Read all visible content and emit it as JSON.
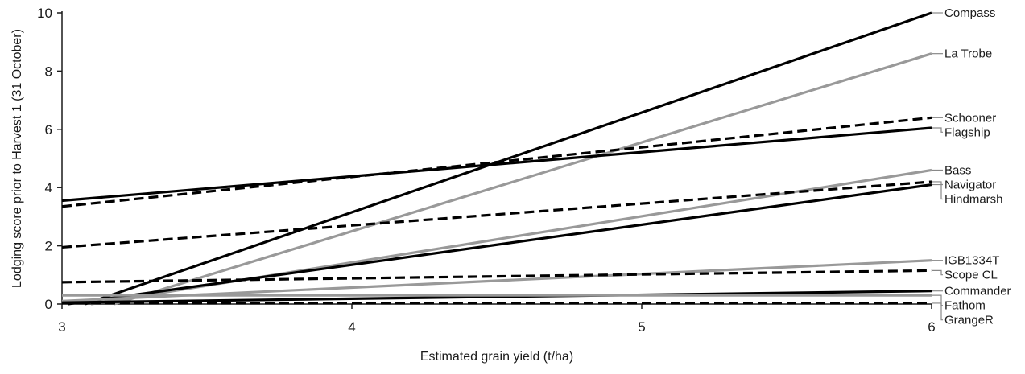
{
  "chart_data": {
    "type": "line",
    "title": "",
    "xlabel": "Estimated grain yield (t/ha)",
    "ylabel": "Lodging score prior to Harvest 1 (31 October)",
    "xlim": [
      3,
      6
    ],
    "ylim": [
      0,
      10
    ],
    "xticks": [
      3,
      4,
      5,
      6
    ],
    "yticks": [
      0,
      2,
      4,
      6,
      8,
      10
    ],
    "grid": false,
    "series": [
      {
        "name": "Compass",
        "color": "#000000",
        "dash": false,
        "x": [
          3.08,
          6
        ],
        "y": [
          0.0,
          10.0
        ]
      },
      {
        "name": "La Trobe",
        "color": "#999999",
        "dash": false,
        "x": [
          3.18,
          6
        ],
        "y": [
          0.0,
          8.6
        ]
      },
      {
        "name": "Schooner",
        "color": "#000000",
        "dash": true,
        "x": [
          3,
          6
        ],
        "y": [
          3.35,
          6.4
        ]
      },
      {
        "name": "Flagship",
        "color": "#000000",
        "dash": false,
        "x": [
          3,
          6
        ],
        "y": [
          3.55,
          6.05
        ]
      },
      {
        "name": "Bass",
        "color": "#999999",
        "dash": false,
        "x": [
          3.1,
          6
        ],
        "y": [
          0.0,
          4.6
        ]
      },
      {
        "name": "Navigator",
        "color": "#000000",
        "dash": true,
        "x": [
          3,
          6
        ],
        "y": [
          1.95,
          4.2
        ]
      },
      {
        "name": "Hindmarsh",
        "color": "#000000",
        "dash": false,
        "x": [
          3.02,
          6
        ],
        "y": [
          0.0,
          4.1
        ]
      },
      {
        "name": "IGB1334T",
        "color": "#999999",
        "dash": false,
        "x": [
          3,
          6
        ],
        "y": [
          0.1,
          1.5
        ]
      },
      {
        "name": "Scope CL",
        "color": "#000000",
        "dash": true,
        "x": [
          3,
          6
        ],
        "y": [
          0.75,
          1.15
        ]
      },
      {
        "name": "Commander",
        "color": "#000000",
        "dash": false,
        "x": [
          3,
          6
        ],
        "y": [
          0.05,
          0.45
        ]
      },
      {
        "name": "Fathom",
        "color": "#999999",
        "dash": false,
        "x": [
          3,
          6
        ],
        "y": [
          0.3,
          0.3
        ]
      },
      {
        "name": "GrangeR",
        "color": "#000000",
        "dash": true,
        "x": [
          3,
          6
        ],
        "y": [
          0.03,
          0.03
        ]
      }
    ]
  }
}
